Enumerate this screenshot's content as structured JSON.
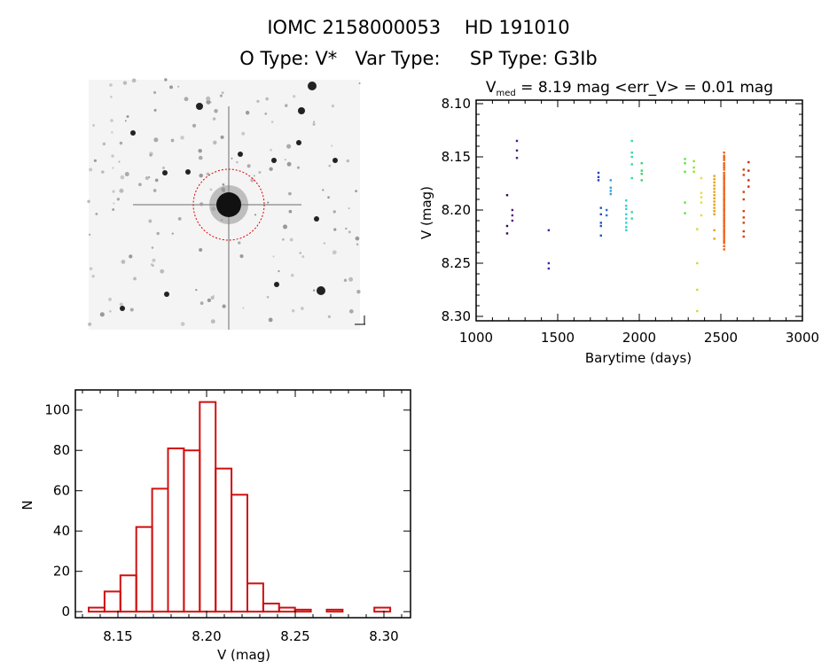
{
  "header": {
    "title": "IOMC 2158000053    HD 191010",
    "subtitle": "O Type: V*   Var Type:     SP Type: G3Ib"
  },
  "image_panel": {
    "description_icon": "sky-image"
  },
  "chart_data": [
    {
      "type": "scatter",
      "title_main": "V",
      "title_sub": "med",
      "title_rest": " = 8.19 mag <err_V> = 0.01 mag",
      "xlabel": "Barytime (days)",
      "ylabel": "V (mag)",
      "xlim": [
        1000,
        3000
      ],
      "ylim": [
        8.302,
        8.098
      ],
      "xticks": [
        "1000",
        "1500",
        "2000",
        "2500",
        "3000"
      ],
      "yticks": [
        "8.10",
        "8.15",
        "8.20",
        "8.25",
        "8.30"
      ],
      "groups": [
        {
          "x": 1190,
          "color": "#3a0a50",
          "y": [
            8.186,
            8.215,
            8.222
          ]
        },
        {
          "x": 1222,
          "color": "#5a1a78",
          "y": [
            8.2,
            8.205,
            8.21
          ]
        },
        {
          "x": 1250,
          "color": "#4a1a80",
          "y": [
            8.135,
            8.144,
            8.151
          ]
        },
        {
          "x": 1445,
          "color": "#3030a0",
          "y": [
            8.219,
            8.25,
            8.255
          ]
        },
        {
          "x": 1750,
          "color": "#2040c0",
          "y": [
            8.165,
            8.169,
            8.172
          ]
        },
        {
          "x": 1765,
          "color": "#2050c8",
          "y": [
            8.198,
            8.204,
            8.212,
            8.215,
            8.224
          ]
        },
        {
          "x": 1800,
          "color": "#3070d0",
          "y": [
            8.2,
            8.205
          ]
        },
        {
          "x": 1825,
          "color": "#30a0e0",
          "y": [
            8.172,
            8.179,
            8.182,
            8.185
          ]
        },
        {
          "x": 1920,
          "color": "#30d0d8",
          "y": [
            8.191,
            8.196,
            8.199,
            8.204,
            8.208,
            8.212,
            8.216,
            8.219
          ]
        },
        {
          "x": 1955,
          "color": "#30d8a0",
          "y": [
            8.135,
            8.146,
            8.15,
            8.157,
            8.17,
            8.202,
            8.208
          ]
        },
        {
          "x": 2015,
          "color": "#40d070",
          "y": [
            8.156,
            8.163,
            8.166,
            8.172
          ]
        },
        {
          "x": 2280,
          "color": "#60e040",
          "y": [
            8.152,
            8.156,
            8.164,
            8.193,
            8.203
          ]
        },
        {
          "x": 2335,
          "color": "#90e030",
          "y": [
            8.154,
            8.16,
            8.164
          ]
        },
        {
          "x": 2355,
          "color": "#c0e030",
          "y": [
            8.218,
            8.25,
            8.275,
            8.295
          ]
        },
        {
          "x": 2380,
          "color": "#e8e020",
          "y": [
            8.17,
            8.184,
            8.188,
            8.193,
            8.205
          ]
        },
        {
          "x": 2460,
          "color": "#e0a020",
          "y": [
            8.168,
            8.171,
            8.174,
            8.177,
            8.18,
            8.183,
            8.186,
            8.189,
            8.192,
            8.195,
            8.198,
            8.201,
            8.204,
            8.219,
            8.227
          ]
        },
        {
          "x": 2520,
          "color": "#f06010",
          "y": [
            8.146,
            8.149,
            8.151,
            8.153,
            8.156,
            8.158,
            8.16,
            8.162,
            8.165,
            8.167,
            8.169,
            8.171,
            8.173,
            8.175,
            8.177,
            8.179,
            8.181,
            8.183,
            8.185,
            8.187,
            8.189,
            8.191,
            8.193,
            8.195,
            8.197,
            8.199,
            8.201,
            8.203,
            8.205,
            8.207,
            8.209,
            8.211,
            8.213,
            8.215,
            8.217,
            8.219,
            8.221,
            8.223,
            8.225,
            8.227,
            8.229,
            8.231,
            8.234,
            8.237
          ]
        },
        {
          "x": 2640,
          "color": "#d04010",
          "y": [
            8.162,
            8.167,
            8.183,
            8.19,
            8.201,
            8.207,
            8.212,
            8.22,
            8.225
          ]
        },
        {
          "x": 2670,
          "color": "#c03010",
          "y": [
            8.155,
            8.163,
            8.172,
            8.178
          ]
        }
      ]
    },
    {
      "type": "bar",
      "subtype": "histogram",
      "xlabel": "V (mag)",
      "ylabel": "N",
      "xlim": [
        8.126,
        8.315
      ],
      "ylim": [
        -3,
        110
      ],
      "xticks": [
        "8.15",
        "8.20",
        "8.25",
        "8.30"
      ],
      "yticks": [
        "0",
        "20",
        "40",
        "60",
        "80",
        "100"
      ],
      "bin_start": 8.1335,
      "bin_width": 0.00895,
      "values": [
        2,
        10,
        18,
        42,
        61,
        81,
        80,
        104,
        71,
        58,
        14,
        4,
        2,
        1,
        0,
        1,
        0,
        0,
        2
      ],
      "color": "#d01010"
    }
  ]
}
